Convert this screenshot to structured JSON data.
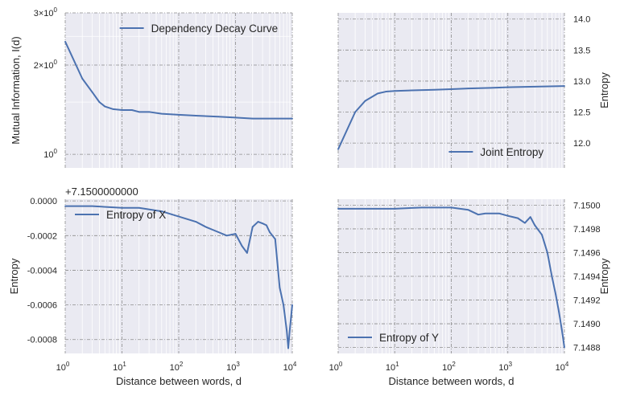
{
  "style": {
    "background": "#eaeaf2",
    "line_color": "#4c72b0",
    "grid_major": "#8c8c8c",
    "grid_minor": "#ffffff"
  },
  "chart_data": [
    {
      "type": "line",
      "panel": "top-left",
      "xscale": "log",
      "yscale": "log",
      "xlim": [
        1,
        10000
      ],
      "ylim": [
        0.9,
        3.0
      ],
      "xlabel": "",
      "ylabel": "Mutual Information, I(d)",
      "yticks": [
        1,
        2,
        3
      ],
      "ytick_labels": [
        "10⁰",
        "2×10⁰",
        "3×10⁰"
      ],
      "xticks": [],
      "x_tick_labels_shown": false,
      "legend": "upper right",
      "series": [
        {
          "name": "Dependency Decay Curve",
          "x": [
            1,
            2,
            3,
            4,
            5,
            7,
            10,
            15,
            20,
            30,
            50,
            100,
            200,
            500,
            1000,
            2000,
            5000,
            10000
          ],
          "y": [
            2.4,
            1.8,
            1.62,
            1.5,
            1.45,
            1.42,
            1.41,
            1.41,
            1.39,
            1.39,
            1.37,
            1.36,
            1.35,
            1.34,
            1.33,
            1.32,
            1.32,
            1.32
          ]
        }
      ]
    },
    {
      "type": "line",
      "panel": "top-right",
      "xscale": "log",
      "xlim": [
        1,
        10000
      ],
      "ylim": [
        11.6,
        14.1
      ],
      "yaxis_side": "right",
      "xlabel": "",
      "ylabel": "Entropy",
      "yticks": [
        12.0,
        12.5,
        13.0,
        13.5,
        14.0
      ],
      "ytick_labels": [
        "12.0",
        "12.5",
        "13.0",
        "13.5",
        "14.0"
      ],
      "x_tick_labels_shown": false,
      "legend": "lower right",
      "series": [
        {
          "name": "Joint Entropy",
          "x": [
            1,
            2,
            3,
            5,
            7,
            10,
            20,
            50,
            100,
            200,
            500,
            1000,
            3000,
            10000
          ],
          "y": [
            11.9,
            12.5,
            12.68,
            12.8,
            12.83,
            12.84,
            12.85,
            12.86,
            12.87,
            12.88,
            12.89,
            12.9,
            12.91,
            12.92
          ]
        }
      ]
    },
    {
      "type": "line",
      "panel": "bottom-left",
      "xscale": "log",
      "xlim": [
        1,
        10000
      ],
      "ylim": [
        -0.00088,
        1e-05
      ],
      "offset_text": "+7.1500000000",
      "xlabel": "Distance between words, d",
      "ylabel": "Entropy",
      "yticks": [
        -0.0008,
        -0.0006,
        -0.0004,
        -0.0002,
        0.0
      ],
      "ytick_labels": [
        "-0.0008",
        "-0.0006",
        "-0.0004",
        "-0.0002",
        "0.0000"
      ],
      "xticks": [
        1,
        10,
        100,
        1000,
        10000
      ],
      "xtick_labels": [
        "10⁰",
        "10¹",
        "10²",
        "10³",
        "10⁴"
      ],
      "legend": "upper left",
      "series": [
        {
          "name": "Entropy of X",
          "x": [
            1,
            3,
            10,
            20,
            50,
            100,
            200,
            300,
            500,
            700,
            1000,
            1300,
            1600,
            2000,
            2500,
            3000,
            3500,
            4000,
            5000,
            6000,
            7000,
            8000,
            8500,
            9000,
            10000
          ],
          "y": [
            -3e-05,
            -3e-05,
            -4e-05,
            -4e-05,
            -6e-05,
            -9e-05,
            -0.00012,
            -0.00015,
            -0.00018,
            -0.0002,
            -0.00019,
            -0.00026,
            -0.0003,
            -0.00015,
            -0.00012,
            -0.00013,
            -0.00014,
            -0.00018,
            -0.00022,
            -0.0005,
            -0.0006,
            -0.00075,
            -0.00085,
            -0.00075,
            -0.0006
          ]
        }
      ]
    },
    {
      "type": "line",
      "panel": "bottom-right",
      "xscale": "log",
      "xlim": [
        1,
        10000
      ],
      "ylim": [
        7.14875,
        7.15005
      ],
      "yaxis_side": "right",
      "xlabel": "Distance between words, d",
      "ylabel": "Entropy",
      "yticks": [
        7.1488,
        7.149,
        7.1492,
        7.1494,
        7.1496,
        7.1498,
        7.15
      ],
      "ytick_labels": [
        "7.1488",
        "7.1490",
        "7.1492",
        "7.1494",
        "7.1496",
        "7.1498",
        "7.1500"
      ],
      "xticks": [
        1,
        10,
        100,
        1000,
        10000
      ],
      "xtick_labels": [
        "10⁰",
        "10¹",
        "10²",
        "10³",
        "10⁴"
      ],
      "legend": "lower left",
      "series": [
        {
          "name": "Entropy of Y",
          "x": [
            1,
            10,
            30,
            100,
            200,
            300,
            400,
            700,
            1000,
            1500,
            2000,
            2500,
            3000,
            4000,
            5000,
            6000,
            7000,
            8000,
            9000,
            10000
          ],
          "y": [
            7.14997,
            7.14997,
            7.14998,
            7.14998,
            7.14996,
            7.14992,
            7.14993,
            7.14993,
            7.14991,
            7.14989,
            7.14985,
            7.1499,
            7.14983,
            7.14975,
            7.1496,
            7.1494,
            7.14925,
            7.1491,
            7.14895,
            7.1488
          ]
        }
      ]
    }
  ]
}
